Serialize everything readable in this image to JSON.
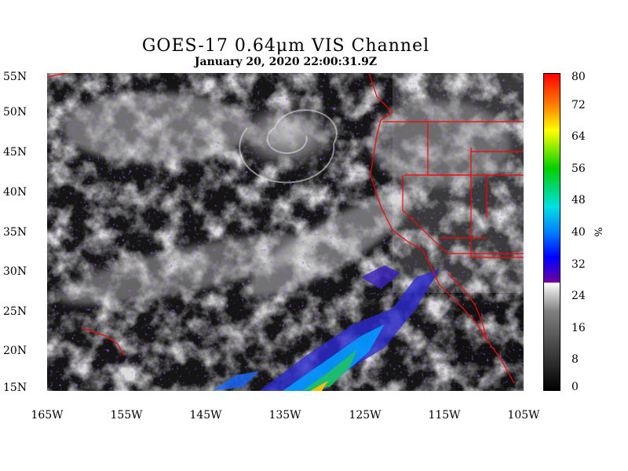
{
  "title": "GOES-17  0.64μm VIS Channel",
  "timestamp": "January 20,  2020 22:00:31.9Z",
  "lat_labels": [
    "55N",
    "50N",
    "45N",
    "40N",
    "35N",
    "30N",
    "25N",
    "20N",
    "15N"
  ],
  "lon_labels": [
    "165W",
    "155W",
    "145W",
    "135W",
    "125W",
    "115W",
    "105W"
  ],
  "colorbar": {
    "ticks": [
      "80",
      "72",
      "64",
      "56",
      "48",
      "40",
      "32",
      "24",
      "16",
      "8",
      "0"
    ],
    "unit": "%"
  },
  "colors": {
    "border_lines": "#ff0000",
    "ocean": "#141414"
  }
}
